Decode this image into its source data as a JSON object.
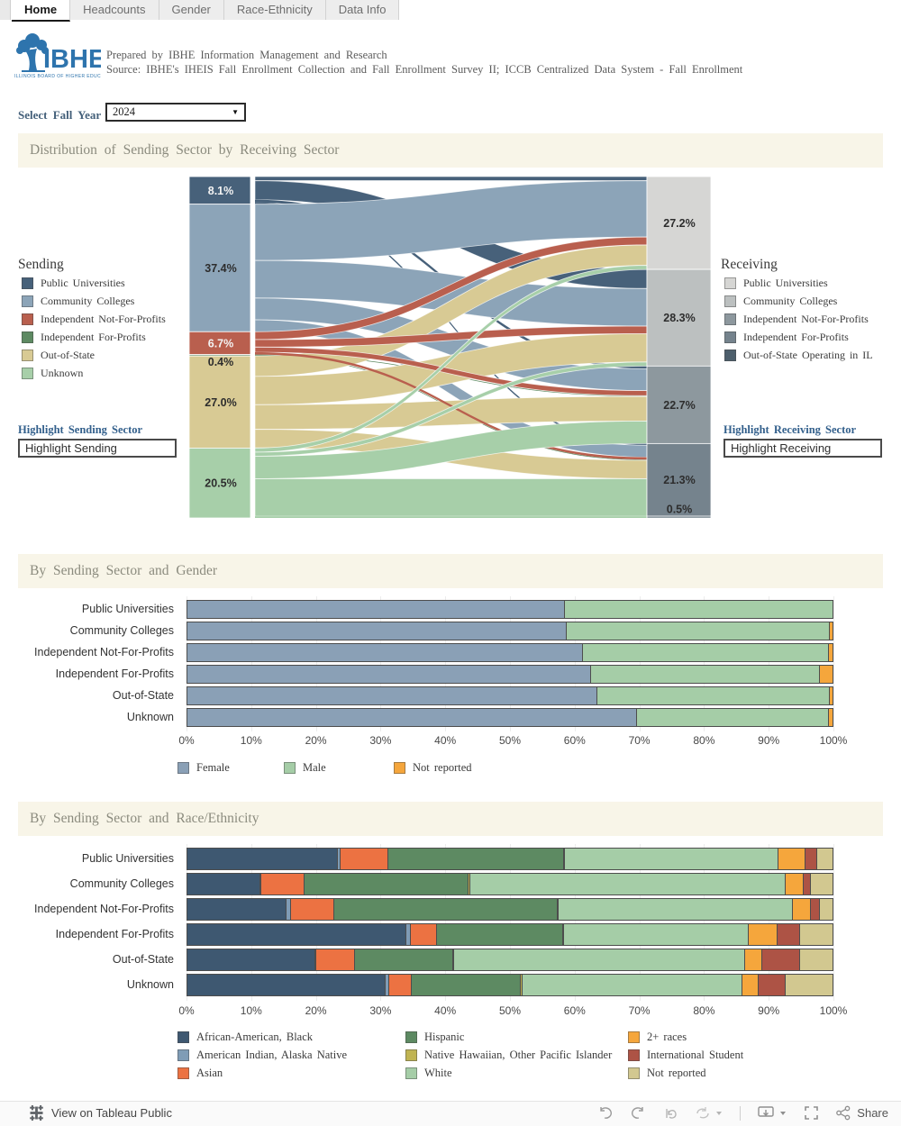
{
  "tabs": [
    {
      "label": "Home",
      "active": true
    },
    {
      "label": "Headcounts",
      "active": false
    },
    {
      "label": "Gender",
      "active": false
    },
    {
      "label": "Race-Ethnicity",
      "active": false
    },
    {
      "label": "Data Info",
      "active": false
    }
  ],
  "header": {
    "logo_text": "IBHE",
    "logo_caption": "ILLINOIS BOARD OF HIGHER EDUCATION",
    "prepared": "Prepared by IBHE Information Management and Research",
    "source": "Source: IBHE's IHEIS Fall Enrollment Collection and Fall Enrollment Survey II; ICCB Centralized Data System - Fall Enrollment"
  },
  "filters": {
    "fall_year_label": "Select Fall Year",
    "fall_year_value": "2024"
  },
  "sankey_section": {
    "title": "Distribution of Sending Sector by Receiving Sector",
    "sending_legend_title": "Sending",
    "receiving_legend_title": "Receiving",
    "highlight_sending_label": "Highlight Sending Sector",
    "highlight_sending_value": "Highlight Sending",
    "highlight_receiving_label": "Highlight Receiving Sector",
    "highlight_receiving_value": "Highlight Receiving"
  },
  "gender_section": {
    "title": "By Sending Sector and Gender"
  },
  "race_section": {
    "title": "By Sending Sector and Race/Ethnicity"
  },
  "footer": {
    "view_label": "View on Tableau Public",
    "share_label": "Share"
  },
  "chart_data": [
    {
      "type": "sankey",
      "title": "Distribution of Sending Sector by Receiving Sector",
      "left_nodes": [
        {
          "label": "Public Universities",
          "pct": 8.1,
          "color": "#47617a"
        },
        {
          "label": "Community Colleges",
          "pct": 37.4,
          "color": "#8ca4b8"
        },
        {
          "label": "Independent Not-For-Profits",
          "pct": 6.7,
          "color": "#b95f4e"
        },
        {
          "label": "Independent For-Profits",
          "pct": 0.4,
          "color": "#5d8a62"
        },
        {
          "label": "Out-of-State",
          "pct": 27.0,
          "color": "#d8ca94"
        },
        {
          "label": "Unknown",
          "pct": 20.5,
          "color": "#a7cfa9"
        }
      ],
      "right_nodes": [
        {
          "label": "Public Universities",
          "pct": 27.2,
          "color": "#d6d6d4"
        },
        {
          "label": "Community Colleges",
          "pct": 28.3,
          "color": "#bcc0c0"
        },
        {
          "label": "Independent Not-For-Profits",
          "pct": 22.7,
          "color": "#8d989e"
        },
        {
          "label": "Independent For-Profits",
          "pct": 21.3,
          "color": "#75838d"
        },
        {
          "label": "Out-of-State Operating in IL",
          "pct": 0.5,
          "color": "#4d5f6c"
        }
      ],
      "flows": [
        [
          "Public Universities",
          "Public Universities",
          1.2
        ],
        [
          "Public Universities",
          "Community Colleges",
          5.6
        ],
        [
          "Public Universities",
          "Independent Not-For-Profits",
          0.8
        ],
        [
          "Public Universities",
          "Independent For-Profits",
          0.5
        ],
        [
          "Community Colleges",
          "Public Universities",
          16.5
        ],
        [
          "Community Colleges",
          "Community Colleges",
          11.0
        ],
        [
          "Community Colleges",
          "Independent Not-For-Profits",
          6.4
        ],
        [
          "Community Colleges",
          "Independent For-Profits",
          3.5
        ],
        [
          "Independent Not-For-Profits",
          "Public Universities",
          2.3
        ],
        [
          "Independent Not-For-Profits",
          "Community Colleges",
          2.2
        ],
        [
          "Independent Not-For-Profits",
          "Independent Not-For-Profits",
          1.5
        ],
        [
          "Independent Not-For-Profits",
          "Independent For-Profits",
          0.7
        ],
        [
          "Independent For-Profits",
          "Independent Not-For-Profits",
          0.2
        ],
        [
          "Independent For-Profits",
          "Independent For-Profits",
          0.2
        ],
        [
          "Out-of-State",
          "Public Universities",
          6.0
        ],
        [
          "Out-of-State",
          "Community Colleges",
          8.3
        ],
        [
          "Out-of-State",
          "Independent Not-For-Profits",
          7.2
        ],
        [
          "Out-of-State",
          "Independent For-Profits",
          5.4
        ],
        [
          "Unknown",
          "Public Universities",
          1.2
        ],
        [
          "Unknown",
          "Community Colleges",
          1.2
        ],
        [
          "Unknown",
          "Independent Not-For-Profits",
          6.6
        ],
        [
          "Unknown",
          "Independent For-Profits",
          11.0
        ],
        [
          "Unknown",
          "Out-of-State Operating in IL",
          0.5
        ]
      ]
    },
    {
      "type": "bar",
      "title": "By Sending Sector and Gender",
      "orientation": "horizontal-stacked",
      "categories": [
        "Public Universities",
        "Community Colleges",
        "Independent Not-For-Profits",
        "Independent For-Profits",
        "Out-of-State",
        "Unknown"
      ],
      "x_ticks": [
        "0%",
        "10%",
        "20%",
        "30%",
        "40%",
        "50%",
        "60%",
        "70%",
        "80%",
        "90%",
        "100%"
      ],
      "xlim": [
        0,
        100
      ],
      "series": [
        {
          "name": "Female",
          "color": "#8aa0b6",
          "values": [
            58.5,
            58.8,
            61.3,
            62.5,
            63.6,
            69.7
          ]
        },
        {
          "name": "Male",
          "color": "#a5cda7",
          "values": [
            41.5,
            40.8,
            38.2,
            35.6,
            36.0,
            29.7
          ]
        },
        {
          "name": "Not reported",
          "color": "#f5a63c",
          "values": [
            0.0,
            0.4,
            0.5,
            1.9,
            0.4,
            0.6
          ]
        }
      ]
    },
    {
      "type": "bar",
      "title": "By Sending Sector and Race/Ethnicity",
      "orientation": "horizontal-stacked",
      "categories": [
        "Public Universities",
        "Community Colleges",
        "Independent Not-For-Profits",
        "Independent For-Profits",
        "Out-of-State",
        "Unknown"
      ],
      "x_ticks": [
        "0%",
        "10%",
        "20%",
        "30%",
        "40%",
        "50%",
        "60%",
        "70%",
        "80%",
        "90%",
        "100%"
      ],
      "xlim": [
        0,
        100
      ],
      "series": [
        {
          "name": "African-American, Black",
          "color": "#3e5871",
          "values": [
            23.4,
            11.3,
            15.4,
            33.9,
            19.8,
            30.7
          ]
        },
        {
          "name": "American Indian, Alaska Native",
          "color": "#7f9cb6",
          "values": [
            0.3,
            0.2,
            0.6,
            0.8,
            0.2,
            0.6
          ]
        },
        {
          "name": "Asian",
          "color": "#ec7242",
          "values": [
            7.4,
            6.7,
            6.8,
            4.0,
            6.0,
            3.5
          ]
        },
        {
          "name": "Hispanic",
          "color": "#5d8a62",
          "values": [
            27.3,
            25.4,
            34.6,
            19.6,
            15.2,
            16.9
          ]
        },
        {
          "name": "Native Hawaiian, Other Pacific Islander",
          "color": "#c0b452",
          "values": [
            0.1,
            0.2,
            0.1,
            0.1,
            0.2,
            0.3
          ]
        },
        {
          "name": "White",
          "color": "#a5cda7",
          "values": [
            33.1,
            49.0,
            36.4,
            28.6,
            45.0,
            34.1
          ]
        },
        {
          "name": "2+ races",
          "color": "#f5a63c",
          "values": [
            4.2,
            2.7,
            2.8,
            4.5,
            2.7,
            2.5
          ]
        },
        {
          "name": "International Student",
          "color": "#ad5345",
          "values": [
            1.8,
            1.1,
            1.4,
            3.5,
            5.9,
            4.2
          ]
        },
        {
          "name": "Not reported",
          "color": "#d2c890",
          "values": [
            2.4,
            3.4,
            1.9,
            5.0,
            5.0,
            7.2
          ]
        }
      ]
    }
  ]
}
